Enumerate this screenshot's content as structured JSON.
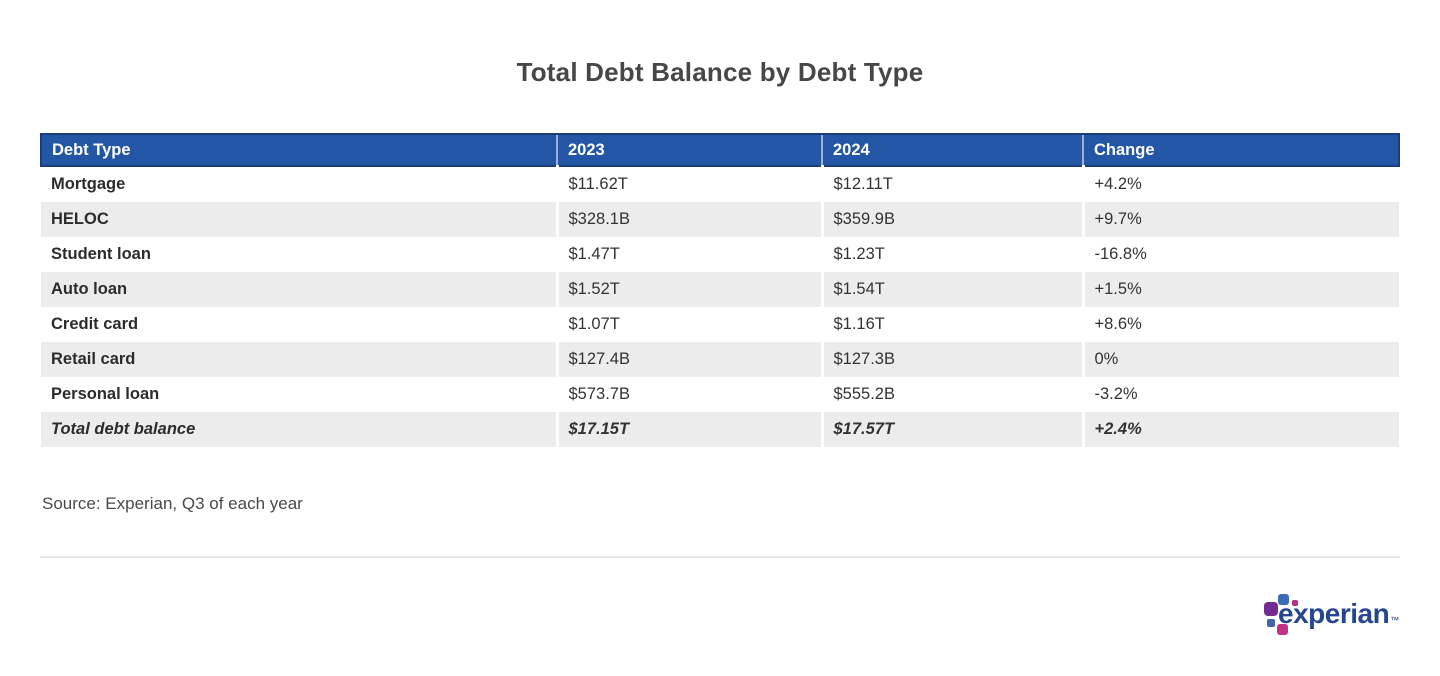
{
  "title": "Total Debt Balance by Debt Type",
  "source": "Source: Experian, Q3 of each year",
  "chart_data": {
    "type": "table",
    "title": "Total Debt Balance by Debt Type",
    "columns": [
      "Debt Type",
      "2023",
      "2024",
      "Change"
    ],
    "rows": [
      {
        "debt_type": "Mortgage",
        "y2023": "$11.62T",
        "y2024": "$12.11T",
        "change": "+4.2%"
      },
      {
        "debt_type": "HELOC",
        "y2023": "$328.1B",
        "y2024": "$359.9B",
        "change": "+9.7%"
      },
      {
        "debt_type": "Student loan",
        "y2023": "$1.47T",
        "y2024": "$1.23T",
        "change": "-16.8%"
      },
      {
        "debt_type": "Auto loan",
        "y2023": "$1.52T",
        "y2024": "$1.54T",
        "change": "+1.5%"
      },
      {
        "debt_type": "Credit card",
        "y2023": "$1.07T",
        "y2024": "$1.16T",
        "change": "+8.6%"
      },
      {
        "debt_type": "Retail card",
        "y2023": "$127.4B",
        "y2024": "$127.3B",
        "change": "0%"
      },
      {
        "debt_type": "Personal loan",
        "y2023": "$573.7B",
        "y2024": "$555.2B",
        "change": "-3.2%"
      },
      {
        "debt_type": "Total debt balance",
        "y2023": "$17.15T",
        "y2024": "$17.57T",
        "change": "+2.4%"
      }
    ],
    "source_note": "Source: Experian, Q3 of each year",
    "layout": {
      "alternating_rows": true,
      "total_row_style": "bold-italic"
    }
  },
  "logo": {
    "wordmark": "experian",
    "trademark": "™"
  },
  "colors": {
    "header_bg": "#2356a4",
    "header_border": "#1b3d7c",
    "alt_row_bg": "#ececec",
    "body_text": "#333333",
    "title_text": "#474747",
    "logo_wordmark": "#26478d",
    "logo_purple": "#742c90",
    "logo_blue": "#3a6cb3",
    "logo_magenta": "#c23284"
  }
}
